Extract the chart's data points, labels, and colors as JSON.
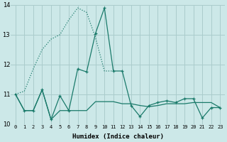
{
  "title": "",
  "xlabel": "Humidex (Indice chaleur)",
  "ylabel": "",
  "xlim": [
    -0.5,
    23.5
  ],
  "ylim": [
    10,
    14
  ],
  "yticks": [
    10,
    11,
    12,
    13,
    14
  ],
  "xticks": [
    0,
    1,
    2,
    3,
    4,
    5,
    6,
    7,
    8,
    9,
    10,
    11,
    12,
    13,
    14,
    15,
    16,
    17,
    18,
    19,
    20,
    21,
    22,
    23
  ],
  "bg_color": "#cce8e8",
  "grid_color": "#aacccc",
  "line_color": "#1a7a6a",
  "line_dotted_x": [
    0,
    1,
    2,
    3,
    4,
    5,
    6,
    7,
    8,
    9,
    10,
    11
  ],
  "line_dotted_y": [
    11.0,
    11.1,
    11.85,
    12.5,
    12.85,
    13.0,
    13.5,
    13.9,
    13.75,
    12.9,
    11.78,
    11.78
  ],
  "line_solid_markers_x": [
    0,
    1,
    2,
    3,
    4,
    5,
    6,
    7,
    8,
    9,
    10,
    11,
    12,
    13,
    14,
    15,
    16,
    17,
    18,
    19,
    20,
    21,
    22,
    23
  ],
  "line_solid_markers_y": [
    11.0,
    10.45,
    10.45,
    11.15,
    10.15,
    10.95,
    10.45,
    11.85,
    11.75,
    13.05,
    13.9,
    11.78,
    11.78,
    10.62,
    10.25,
    10.62,
    10.72,
    10.78,
    10.72,
    10.85,
    10.85,
    10.2,
    10.55,
    10.55
  ],
  "line_solid_flat_x": [
    0,
    1,
    2,
    3,
    4,
    5,
    6,
    7,
    8,
    9,
    10,
    11,
    12,
    13,
    14,
    15,
    16,
    17,
    18,
    19,
    20,
    21,
    22,
    23
  ],
  "line_solid_flat_y": [
    11.0,
    10.45,
    10.45,
    11.15,
    10.15,
    10.45,
    10.45,
    10.45,
    10.45,
    10.75,
    10.75,
    10.75,
    10.68,
    10.68,
    10.62,
    10.58,
    10.62,
    10.68,
    10.68,
    10.68,
    10.72,
    10.72,
    10.72,
    10.55
  ]
}
